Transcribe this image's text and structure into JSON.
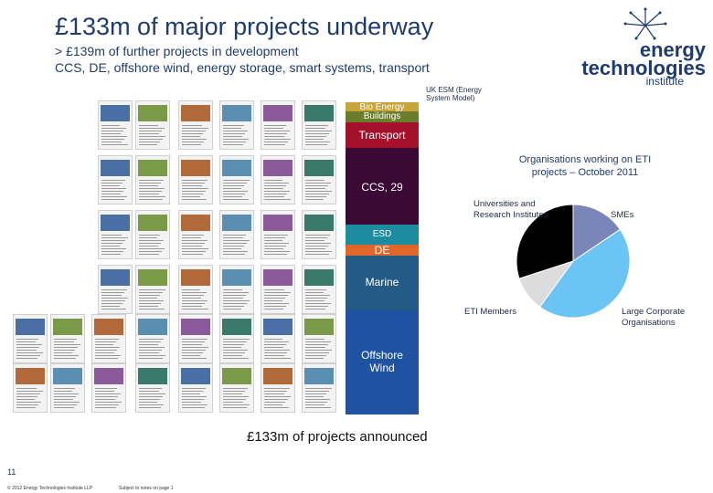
{
  "header": {
    "title": "£133m of major projects underway",
    "subtitle_line1": "> £139m of further projects in development",
    "subtitle_line2": "CCS, DE, offshore wind, energy storage, smart systems, transport"
  },
  "logo": {
    "line1": "energy",
    "line2": "technologies",
    "line3": "institute"
  },
  "bar": {
    "top_label": "UK ESM (Energy System Model)",
    "segments": [
      {
        "label": "Bio Energy",
        "color": "#c9a43a"
      },
      {
        "label": "Buildings",
        "color": "#6b7c2a"
      },
      {
        "label": "Transport",
        "color": "#a3122a"
      },
      {
        "label": "CCS, 29",
        "color": "#3b0a34"
      },
      {
        "label": "ESD",
        "color": "#1d8ca0"
      },
      {
        "label": "DE",
        "color": "#e0672a"
      },
      {
        "label": "Marine",
        "color": "#235a86"
      },
      {
        "label": "Offshore Wind",
        "color": "#1f53a1"
      }
    ],
    "caption": "£133m of projects announced"
  },
  "pie": {
    "title_line1": "Organisations working on ETI",
    "title_line2": "projects – October 2011",
    "labels": {
      "smes": "SMEs",
      "universities": "Universities and Research Institutes",
      "eti_members": "ETI Members",
      "large": "Large Corporate Organisations"
    },
    "colors": {
      "smes": "#7b86b8",
      "large": "#6cc4f4",
      "eti_members": "#dcdcdc",
      "universities": "#000000"
    }
  },
  "footer": {
    "page_number": "11",
    "copyright": "© 2012 Energy Technologies Institute LLP",
    "note": "Subject to notes on page 1"
  }
}
